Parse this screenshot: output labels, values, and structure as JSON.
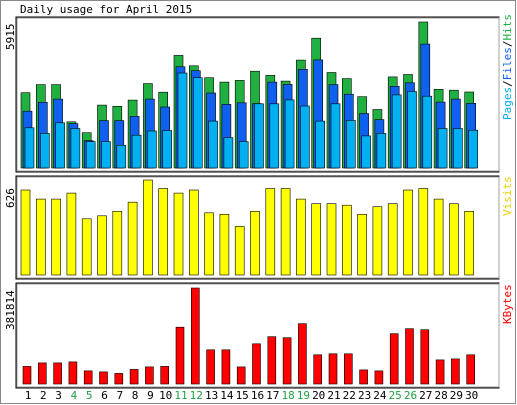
{
  "chart_data": [
    {
      "type": "bar",
      "panel": "hits-files-pages",
      "title": "Daily usage for April 2015",
      "max_label": "5915",
      "legend": {
        "pages": "Pages",
        "files": "Files",
        "hits": "Hits",
        "separator": "/"
      },
      "categories": [
        "1",
        "2",
        "3",
        "4",
        "5",
        "6",
        "7",
        "8",
        "9",
        "10",
        "11",
        "12",
        "13",
        "14",
        "15",
        "16",
        "17",
        "18",
        "19",
        "20",
        "21",
        "22",
        "23",
        "24",
        "25",
        "26",
        "27",
        "28",
        "29",
        "30"
      ],
      "weekend_days": [
        "4",
        "5",
        "11",
        "12",
        "18",
        "19",
        "25",
        "26"
      ],
      "ylim": [
        0,
        5915
      ],
      "series": [
        {
          "name": "Hits",
          "color": "#20b040",
          "values": [
            3050,
            3380,
            3380,
            1870,
            1430,
            2550,
            2500,
            2750,
            3420,
            3070,
            4560,
            4140,
            3660,
            3480,
            3550,
            3920,
            3750,
            3520,
            4370,
            5260,
            3870,
            3620,
            2890,
            2370,
            3690,
            3790,
            5915,
            3190,
            3150,
            3080
          ]
        },
        {
          "name": "Files",
          "color": "#1060f0",
          "values": [
            2300,
            2660,
            2790,
            1800,
            1110,
            1920,
            1920,
            2090,
            2790,
            2470,
            4100,
            3940,
            3040,
            2580,
            2640,
            2610,
            3480,
            3390,
            4000,
            4380,
            3380,
            2990,
            2210,
            1960,
            3310,
            3450,
            5020,
            2670,
            2790,
            2620
          ]
        },
        {
          "name": "Pages",
          "color": "#00b0f0",
          "values": [
            1630,
            1400,
            1830,
            1600,
            1070,
            1070,
            920,
            1330,
            1500,
            1520,
            3850,
            3660,
            1900,
            1230,
            1070,
            2600,
            2600,
            2760,
            2510,
            1900,
            2600,
            1930,
            1300,
            1400,
            2960,
            3100,
            2910,
            1600,
            1600,
            1530
          ]
        }
      ]
    },
    {
      "type": "bar",
      "panel": "visits",
      "max_label": "626",
      "legend": {
        "visits": "Visits"
      },
      "series": [
        {
          "name": "Visits",
          "color": "#ffff00",
          "values": [
            560,
            500,
            500,
            540,
            370,
            390,
            420,
            480,
            626,
            570,
            540,
            560,
            410,
            400,
            320,
            420,
            570,
            570,
            500,
            470,
            470,
            460,
            400,
            450,
            470,
            560,
            570,
            500,
            470,
            420
          ]
        }
      ]
    },
    {
      "type": "bar",
      "panel": "kbytes",
      "max_label": "381814",
      "legend": {
        "kbytes": "KBytes"
      },
      "series": [
        {
          "name": "KBytes",
          "color": "#ff0000",
          "values": [
            70000,
            84000,
            84000,
            88000,
            52000,
            48000,
            42000,
            58000,
            68000,
            70000,
            226000,
            381814,
            136000,
            136000,
            68000,
            160000,
            188000,
            184000,
            240000,
            116000,
            120000,
            120000,
            56000,
            52000,
            200000,
            220000,
            216000,
            96000,
            100000,
            116000
          ]
        }
      ]
    }
  ]
}
